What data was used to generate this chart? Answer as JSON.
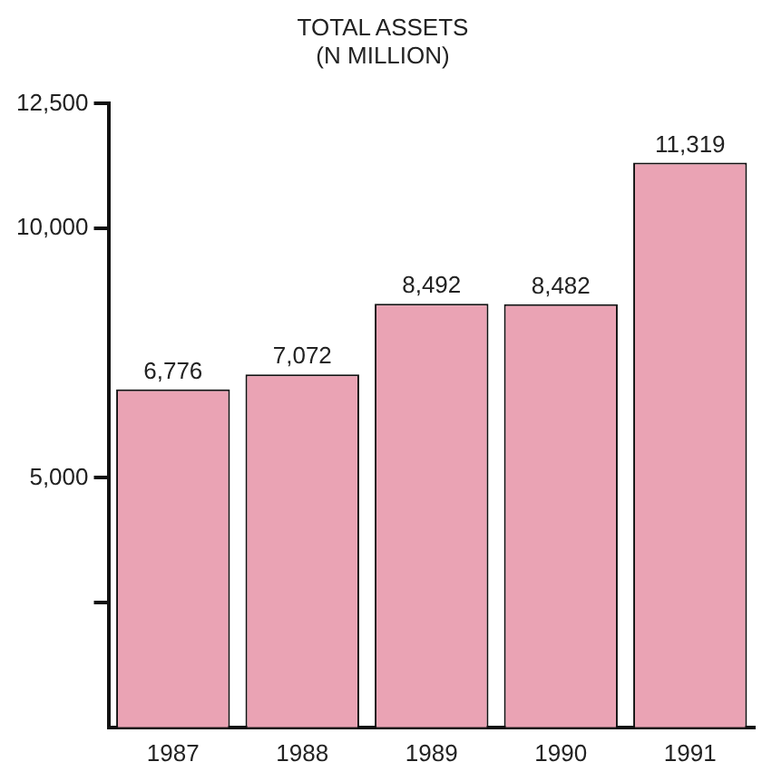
{
  "chart_data": {
    "type": "bar",
    "title": "TOTAL ASSETS\n(N MILLION)",
    "categories": [
      "1987",
      "1988",
      "1989",
      "1990",
      "1991"
    ],
    "values": [
      6776,
      7072,
      8492,
      8482,
      11319
    ],
    "color": "#eaa3b4",
    "ylim": [
      0,
      12500
    ],
    "yticks": [
      {
        "value": 2500,
        "label": null
      },
      {
        "value": 5000,
        "label": "5,000"
      },
      {
        "value": 10000,
        "label": "10,000"
      },
      {
        "value": 12500,
        "label": "12,500"
      }
    ],
    "value_labels": [
      "6,776",
      "7,072",
      "8,492",
      "8,482",
      "11,319"
    ],
    "grid": false,
    "legend": false
  }
}
